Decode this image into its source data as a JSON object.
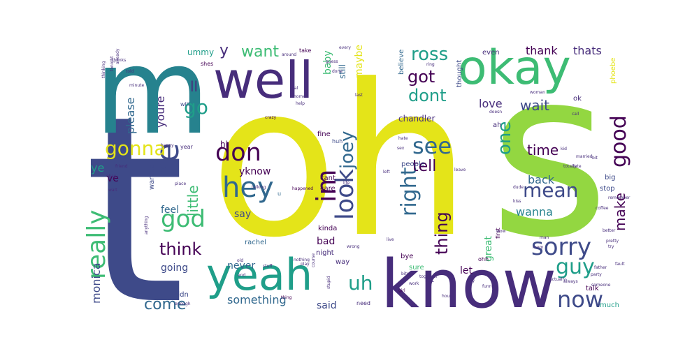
{
  "palette": {
    "background": "#ffffff",
    "yellow": "#e4e419",
    "lime": "#93d741",
    "green": "#3dbc74",
    "teal": "#1f9e89",
    "blue": "#26828e",
    "slate": "#31688e",
    "indigo": "#3e4a89",
    "purple": "#472d7b",
    "dark": "#440154"
  },
  "words": [
    {
      "text": "oh"
    },
    {
      "text": "s"
    },
    {
      "text": "t"
    },
    {
      "text": "m"
    },
    {
      "text": "know"
    },
    {
      "text": "well"
    },
    {
      "text": "okay"
    },
    {
      "text": "yeah"
    },
    {
      "text": "hey"
    },
    {
      "text": "re"
    },
    {
      "text": "don"
    },
    {
      "text": "im"
    },
    {
      "text": "right"
    },
    {
      "text": "look"
    },
    {
      "text": "sorry"
    },
    {
      "text": "really"
    },
    {
      "text": "gonna"
    },
    {
      "text": "god"
    },
    {
      "text": "joey"
    },
    {
      "text": "see"
    },
    {
      "text": "uh"
    },
    {
      "text": "mean"
    },
    {
      "text": "guy"
    },
    {
      "text": "now"
    },
    {
      "text": "good"
    },
    {
      "text": "want"
    },
    {
      "text": "ross"
    },
    {
      "text": "got"
    },
    {
      "text": "dont"
    },
    {
      "text": "go"
    },
    {
      "text": "think"
    },
    {
      "text": "little"
    },
    {
      "text": "thing"
    },
    {
      "text": "one"
    },
    {
      "text": "come"
    },
    {
      "text": "tell"
    },
    {
      "text": "wait"
    },
    {
      "text": "time"
    },
    {
      "text": "make"
    },
    {
      "text": "ll"
    },
    {
      "text": "y"
    },
    {
      "text": "something"
    },
    {
      "text": "thank"
    },
    {
      "text": "thats"
    },
    {
      "text": "love"
    },
    {
      "text": "maybe"
    },
    {
      "text": "wanna"
    },
    {
      "text": "back"
    },
    {
      "text": "please"
    },
    {
      "text": "youre"
    },
    {
      "text": "monica"
    },
    {
      "text": "yknow"
    },
    {
      "text": "never"
    },
    {
      "text": "going"
    },
    {
      "text": "feel"
    },
    {
      "text": "say"
    },
    {
      "text": "said"
    },
    {
      "text": "bad"
    },
    {
      "text": "let"
    },
    {
      "text": "great"
    },
    {
      "text": "baby"
    },
    {
      "text": "ve"
    },
    {
      "text": "ye"
    },
    {
      "text": "ummy"
    },
    {
      "text": "hi"
    },
    {
      "text": "chandler"
    },
    {
      "text": "still"
    },
    {
      "text": "believe"
    },
    {
      "text": "thought"
    },
    {
      "text": "fine"
    },
    {
      "text": "kinda"
    },
    {
      "text": "people"
    },
    {
      "text": "cant"
    },
    {
      "text": "care"
    },
    {
      "text": "rachel"
    },
    {
      "text": "night"
    },
    {
      "text": "way"
    },
    {
      "text": "sure"
    },
    {
      "text": "bye"
    },
    {
      "text": "ohh"
    },
    {
      "text": "lot"
    },
    {
      "text": "talk"
    },
    {
      "text": "much"
    },
    {
      "text": "need"
    },
    {
      "text": "didn"
    },
    {
      "text": "wanted"
    },
    {
      "text": "year"
    },
    {
      "text": "stop"
    },
    {
      "text": "big"
    },
    {
      "text": "ok"
    },
    {
      "text": "phoebe"
    },
    {
      "text": "even"
    },
    {
      "text": "ah"
    },
    {
      "text": "take"
    },
    {
      "text": "will"
    },
    {
      "text": "shes"
    },
    {
      "text": "huh"
    },
    {
      "text": "first"
    },
    {
      "text": "crazy"
    },
    {
      "text": "happened"
    },
    {
      "text": "u"
    },
    {
      "text": "wow"
    },
    {
      "text": "call"
    },
    {
      "text": "coffee"
    },
    {
      "text": "remember"
    },
    {
      "text": "actually"
    },
    {
      "text": "party"
    },
    {
      "text": "fault"
    },
    {
      "text": "girl"
    },
    {
      "text": "hour"
    },
    {
      "text": "day"
    },
    {
      "text": "always"
    },
    {
      "text": "someone"
    },
    {
      "text": "funny"
    },
    {
      "text": "together"
    },
    {
      "text": "stuff"
    },
    {
      "text": "enough"
    },
    {
      "text": "thing"
    },
    {
      "text": "hate"
    },
    {
      "text": "leave"
    },
    {
      "text": "anything"
    },
    {
      "text": "place"
    },
    {
      "text": "talking"
    },
    {
      "text": "life"
    },
    {
      "text": "friend"
    },
    {
      "text": "nothing"
    },
    {
      "text": "tonight"
    },
    {
      "text": "already"
    },
    {
      "text": "thinking"
    },
    {
      "text": "told"
    },
    {
      "text": "minute"
    },
    {
      "text": "ring"
    },
    {
      "text": "every"
    },
    {
      "text": "real"
    },
    {
      "text": "home"
    },
    {
      "text": "help"
    },
    {
      "text": "left"
    },
    {
      "text": "woman"
    },
    {
      "text": "totally"
    },
    {
      "text": "married"
    },
    {
      "text": "kid"
    },
    {
      "text": "date"
    },
    {
      "text": "bit"
    },
    {
      "text": "dude"
    },
    {
      "text": "better"
    },
    {
      "text": "pretty"
    },
    {
      "text": "try"
    },
    {
      "text": "course"
    },
    {
      "text": "wrong"
    },
    {
      "text": "stupid"
    },
    {
      "text": "old"
    },
    {
      "text": "end"
    },
    {
      "text": "play"
    },
    {
      "text": "live"
    },
    {
      "text": "around"
    },
    {
      "text": "guess"
    },
    {
      "text": "done"
    },
    {
      "text": "last"
    },
    {
      "text": "thanks"
    },
    {
      "text": "wait"
    },
    {
      "text": "mom"
    },
    {
      "text": "man"
    },
    {
      "text": "bitch"
    },
    {
      "text": "sex"
    },
    {
      "text": "okay"
    },
    {
      "text": "happy"
    },
    {
      "text": "doesn"
    },
    {
      "text": "kiss"
    },
    {
      "text": "work"
    },
    {
      "text": "father"
    }
  ]
}
